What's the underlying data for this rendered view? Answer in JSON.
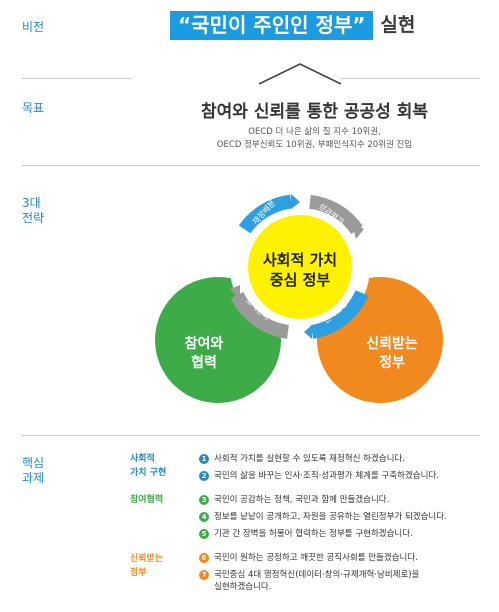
{
  "labels": {
    "vision": "비전",
    "goal": "목표",
    "strategy_line1": "3대",
    "strategy_line2": "전략",
    "core_tasks_line1": "핵심",
    "core_tasks_line2": "과제"
  },
  "vision": {
    "highlight": "“국민이 주인인 정부”",
    "suffix": "실현"
  },
  "goal": {
    "title": "참여와 신뢰를 통한 공공성 회복",
    "sub_line1": "OECD 더 나은 삶의 질 지수 10위권,",
    "sub_line2": "OECD 정부신뢰도 10위권, 부패인식지수 20위권 진입"
  },
  "strategy": {
    "core_line1": "사회적 가치",
    "core_line2": "중심 정부",
    "left_line1": "참여와",
    "left_line2": "협력",
    "right_line1": "신뢰받는",
    "right_line2": "정부",
    "ring_labels": [
      "재정배분",
      "성과평가",
      "인사운영",
      "조직관리"
    ]
  },
  "core_tasks": {
    "groups": [
      {
        "category_line1": "사회적",
        "category_line2": "가치 구현",
        "color": "#1e88c9",
        "items": [
          {
            "num": "1",
            "text": "사회적 가치를 실현할 수 있도록 재정혁신 하겠습니다."
          },
          {
            "num": "2",
            "text": "국민의 삶을 바꾸는 인사·조직·성과평가 체계를 구축하겠습니다."
          }
        ]
      },
      {
        "category_line1": "참여협력",
        "category_line2": "",
        "color": "#3eab49",
        "items": [
          {
            "num": "3",
            "text": "국민이 공감하는 정책, 국민과 함께 만들겠습니다."
          },
          {
            "num": "4",
            "text": "정보를 낱낱이 공개하고, 자원을 공유하는 열린정부가 되겠습니다."
          },
          {
            "num": "5",
            "text": "기관 간 장벽을 허물어 협력하는 정부를 구현하겠습니다."
          }
        ]
      },
      {
        "category_line1": "신뢰받는",
        "category_line2": "정부",
        "color": "#f08a1e",
        "items": [
          {
            "num": "6",
            "text": "국민이 원하는 공정하고 깨끗한 공직사회를 만들겠습니다."
          },
          {
            "num": "7",
            "text": "국민중심 4대 행정혁신(데이터·창의·규제개혁·낭비제로)을",
            "text2": "실현하겠습니다."
          }
        ]
      }
    ]
  },
  "colors": {
    "accent_blue": "#1c9be0",
    "green": "#3eab49",
    "orange": "#f08a1e",
    "yellow": "#fff200"
  }
}
